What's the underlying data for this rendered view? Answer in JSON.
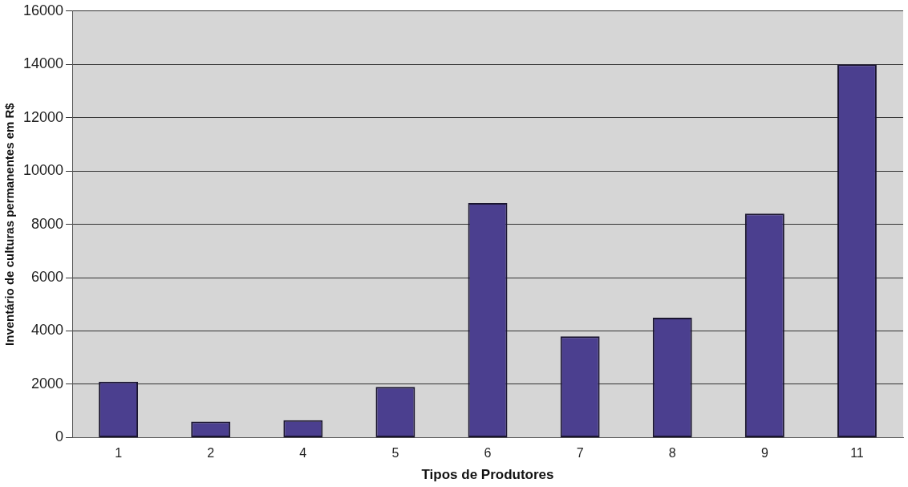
{
  "chart_data": {
    "type": "bar",
    "xlabel": "Tipos de Produtores",
    "ylabel": "Inventário de culturas permanentes em R$",
    "categories": [
      "1",
      "2",
      "4",
      "5",
      "6",
      "7",
      "8",
      "9",
      "11"
    ],
    "values": [
      2100,
      600,
      650,
      1900,
      8800,
      3800,
      4500,
      8400,
      14000
    ],
    "color": "#4b3f8f",
    "ylim": [
      0,
      16000
    ],
    "yticks": [
      0,
      2000,
      4000,
      6000,
      8000,
      10000,
      12000,
      14000,
      16000
    ],
    "grid": "y"
  }
}
